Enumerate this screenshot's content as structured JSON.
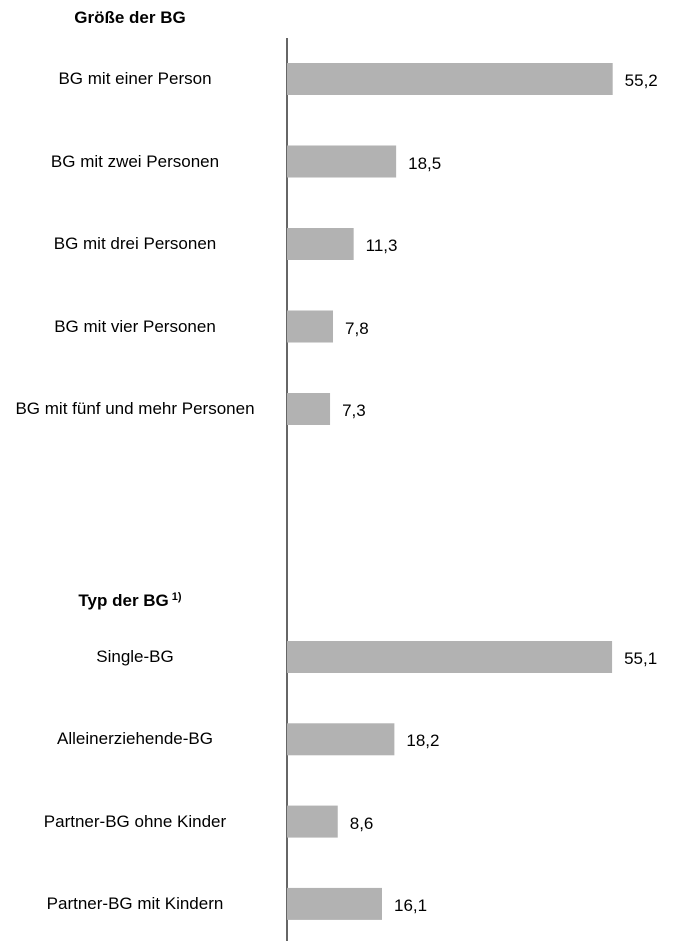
{
  "chart_data": [
    {
      "type": "bar",
      "orientation": "horizontal",
      "title": "Größe der BG",
      "categories": [
        "BG mit einer Person",
        "BG mit zwei Personen",
        "BG mit drei Personen",
        "BG mit vier Personen",
        "BG mit fünf und mehr Personen"
      ],
      "values": [
        55.2,
        18.5,
        11.3,
        7.8,
        7.3
      ],
      "value_labels": [
        "55,2",
        "18,5",
        "11,3",
        "7,8",
        "7,3"
      ],
      "color": "#b2b2b2",
      "xlim": [
        0,
        60
      ]
    },
    {
      "type": "bar",
      "orientation": "horizontal",
      "title": "Typ der BG",
      "title_note": "1)",
      "categories": [
        "Single-BG",
        "Alleinerziehende-BG",
        "Partner-BG ohne Kinder",
        "Partner-BG mit Kindern"
      ],
      "values": [
        55.1,
        18.2,
        8.6,
        16.1
      ],
      "value_labels": [
        "55,1",
        "18,2",
        "8,6",
        "16,1"
      ],
      "color": "#b2b2b2",
      "xlim": [
        0,
        60
      ]
    }
  ]
}
